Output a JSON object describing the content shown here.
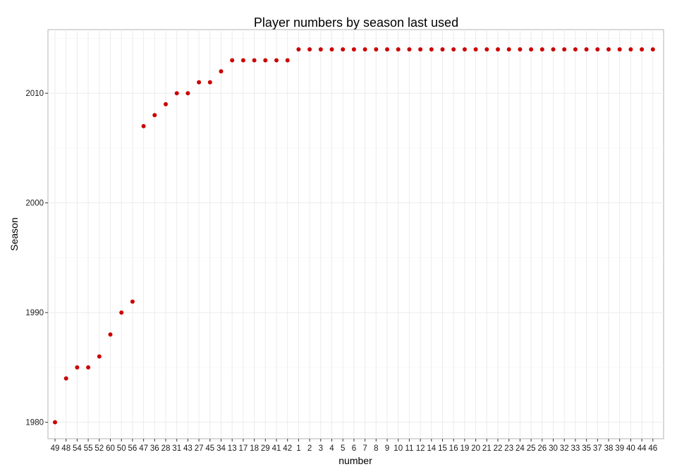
{
  "chart_data": {
    "type": "scatter",
    "title": "Player numbers by season last used",
    "xlabel": "number",
    "ylabel": "Season",
    "point_color": "#cc0000",
    "ylim": [
      1978.5,
      2015.8
    ],
    "yticks": [
      1980,
      1990,
      2000,
      2010
    ],
    "grid": true,
    "categories": [
      "49",
      "48",
      "54",
      "55",
      "52",
      "60",
      "50",
      "56",
      "47",
      "36",
      "28",
      "31",
      "43",
      "27",
      "45",
      "34",
      "13",
      "17",
      "18",
      "29",
      "41",
      "42",
      "1",
      "2",
      "3",
      "4",
      "5",
      "6",
      "7",
      "8",
      "9",
      "10",
      "11",
      "12",
      "14",
      "15",
      "16",
      "19",
      "20",
      "21",
      "22",
      "23",
      "24",
      "25",
      "26",
      "30",
      "32",
      "33",
      "35",
      "37",
      "38",
      "39",
      "40",
      "44",
      "46"
    ],
    "values": [
      1980,
      1984,
      1985,
      1985,
      1986,
      1988,
      1990,
      1991,
      2007,
      2008,
      2009,
      2010,
      2010,
      2011,
      2011,
      2012,
      2013,
      2013,
      2013,
      2013,
      2013,
      2013,
      2014,
      2014,
      2014,
      2014,
      2014,
      2014,
      2014,
      2014,
      2014,
      2014,
      2014,
      2014,
      2014,
      2014,
      2014,
      2014,
      2014,
      2014,
      2014,
      2014,
      2014,
      2014,
      2014,
      2014,
      2014,
      2014,
      2014,
      2014,
      2014,
      2014,
      2014,
      2014,
      2014
    ]
  }
}
